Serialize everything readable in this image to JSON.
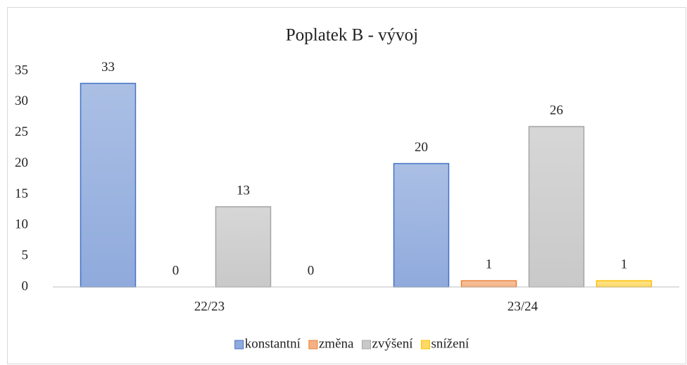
{
  "chart_data": {
    "type": "bar",
    "title": "Poplatek B - vývoj",
    "categories": [
      "22/23",
      "23/24"
    ],
    "series": [
      {
        "name": "konstantní",
        "color": "#8faadc",
        "edge": "#4472c4",
        "values": [
          33,
          20
        ]
      },
      {
        "name": "změna",
        "color": "#f4b183",
        "edge": "#ed7d31",
        "values": [
          0,
          1
        ]
      },
      {
        "name": "zvýšení",
        "color": "#c9c9c9",
        "edge": "#a5a5a5",
        "values": [
          13,
          26
        ]
      },
      {
        "name": "snížení",
        "color": "#ffd966",
        "edge": "#ffc000",
        "values": [
          0,
          1
        ]
      }
    ],
    "ylim": [
      0,
      35
    ],
    "yticks": [
      0,
      5,
      10,
      15,
      20,
      25,
      30,
      35
    ],
    "grid": false,
    "legend": "bottom"
  }
}
